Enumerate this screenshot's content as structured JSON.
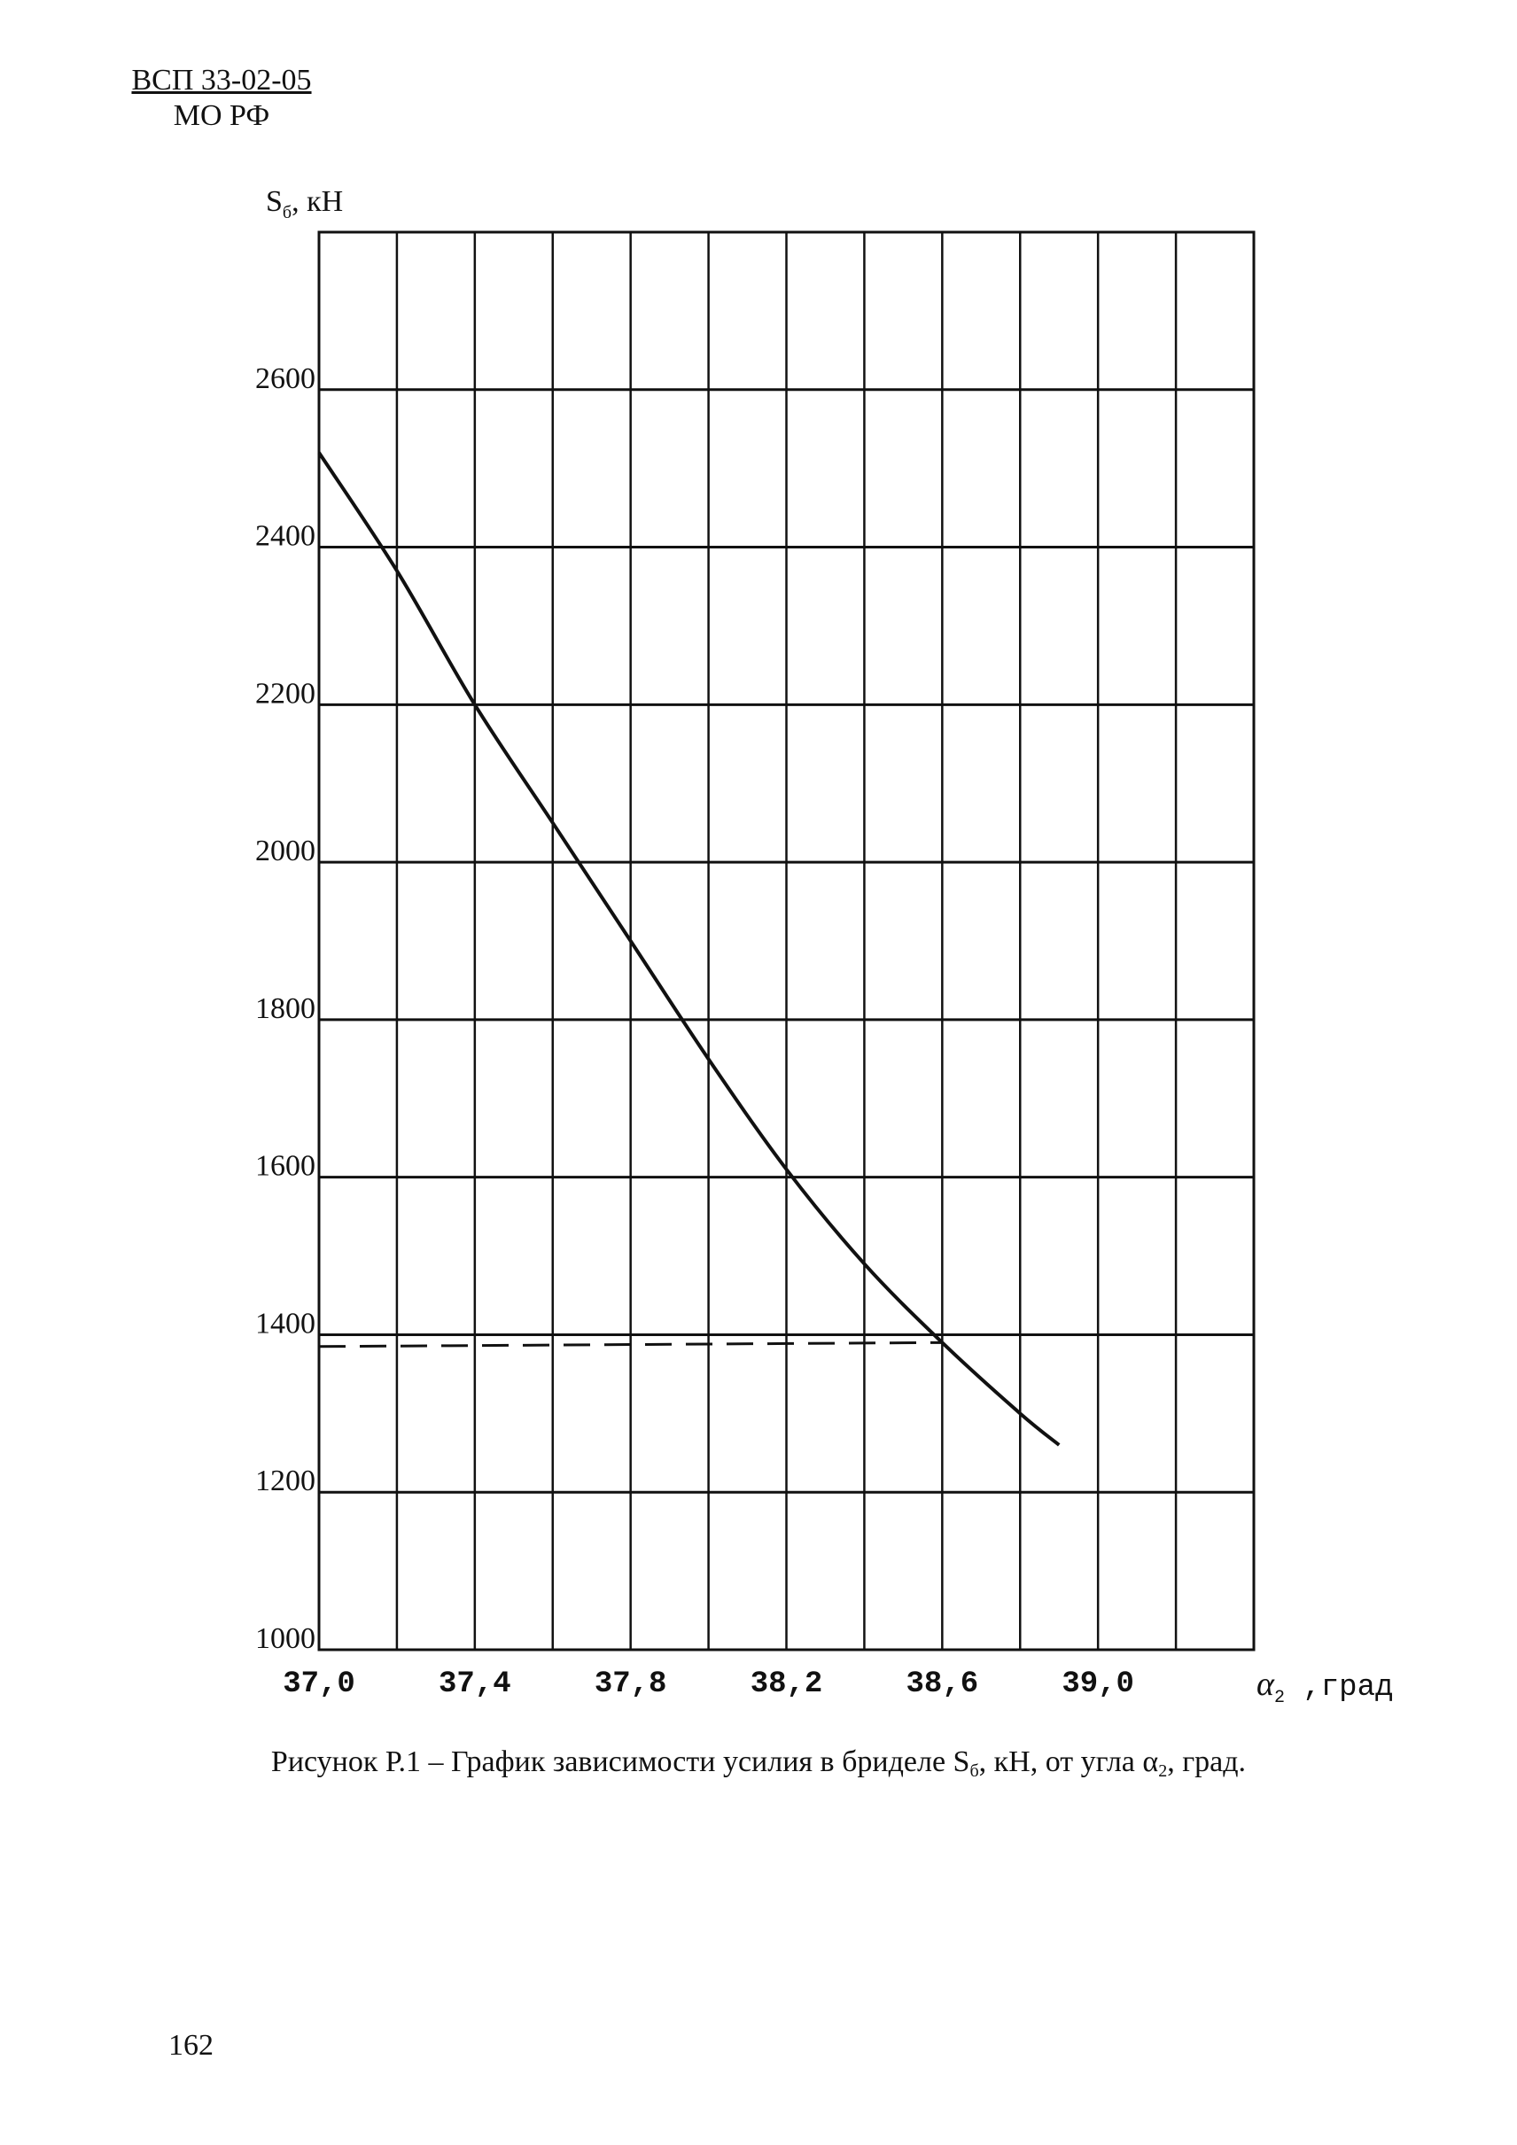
{
  "header": {
    "code": "ВСП 33-02-05",
    "org": "МО РФ"
  },
  "chart_data": {
    "type": "line",
    "ylabel_main": "S",
    "ylabel_sub": "б",
    "ylabel_unit": ", кН",
    "xlabel_main": "α",
    "xlabel_sub": "2",
    "xlabel_unit": " ,град",
    "xlim": [
      37.0,
      39.4
    ],
    "ylim": [
      1000,
      2800
    ],
    "x_ticks": [
      {
        "value": 37.0,
        "label": "37,0"
      },
      {
        "value": 37.4,
        "label": "37,4"
      },
      {
        "value": 37.8,
        "label": "37,8"
      },
      {
        "value": 38.2,
        "label": "38,2"
      },
      {
        "value": 38.6,
        "label": "38,6"
      },
      {
        "value": 39.0,
        "label": "39,0"
      }
    ],
    "y_ticks": [
      {
        "value": 1000,
        "label": "1000"
      },
      {
        "value": 1200,
        "label": "1200"
      },
      {
        "value": 1400,
        "label": "1400"
      },
      {
        "value": 1600,
        "label": "1600"
      },
      {
        "value": 1800,
        "label": "1800"
      },
      {
        "value": 2000,
        "label": "2000"
      },
      {
        "value": 2200,
        "label": "2200"
      },
      {
        "value": 2400,
        "label": "2400"
      },
      {
        "value": 2600,
        "label": "2600"
      }
    ],
    "grid": true,
    "series": [
      {
        "style": "solid",
        "x": [
          37.0,
          37.2,
          37.4,
          37.6,
          37.8,
          38.0,
          38.2,
          38.4,
          38.6,
          38.8,
          38.9
        ],
        "y": [
          2520,
          2370,
          2200,
          2050,
          1900,
          1750,
          1610,
          1490,
          1390,
          1300,
          1260
        ]
      },
      {
        "style": "dashed",
        "x": [
          37.0,
          38.6
        ],
        "y": [
          1385,
          1390
        ]
      }
    ]
  },
  "caption": {
    "prefix": "Рисунок Р.1 – График зависимости усилия в бриделе S",
    "sub1": "б",
    "middle": ", кН, от угла α",
    "sub2": "2",
    "suffix": ", град."
  },
  "page_number": "162"
}
